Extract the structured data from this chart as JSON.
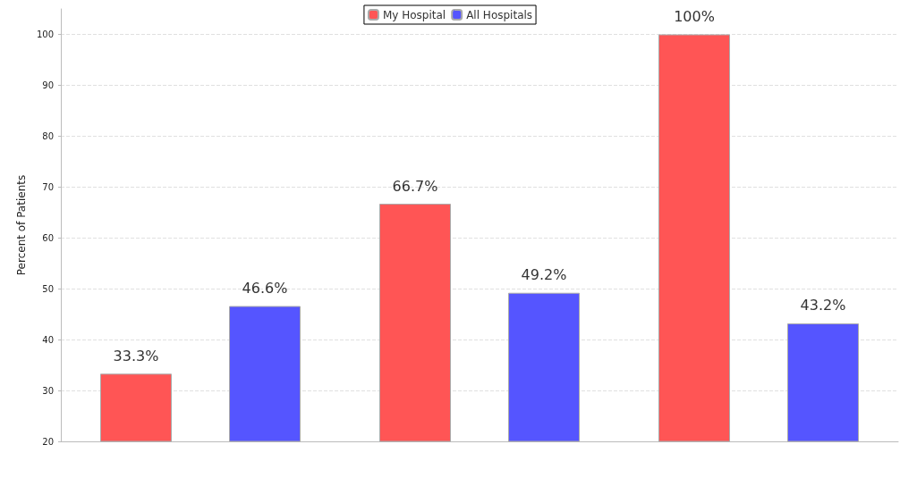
{
  "chart_data": {
    "type": "bar",
    "ylabel": "Percent of Patients",
    "categories": [
      null,
      null,
      null
    ],
    "series": [
      {
        "name": "My Hospital",
        "color": "#ff5555",
        "values": [
          33.3,
          66.7,
          100
        ],
        "value_labels": [
          "33.3%",
          "66.7%",
          "100%"
        ]
      },
      {
        "name": "All Hospitals",
        "color": "#5555ff",
        "values": [
          46.6,
          49.2,
          43.2
        ],
        "value_labels": [
          "46.6%",
          "49.2%",
          "43.2%"
        ]
      }
    ],
    "ylim": [
      20,
      105
    ],
    "yticks": [
      20,
      30,
      40,
      50,
      60,
      70,
      80,
      90,
      100
    ],
    "grid": "y",
    "legend": "top"
  }
}
